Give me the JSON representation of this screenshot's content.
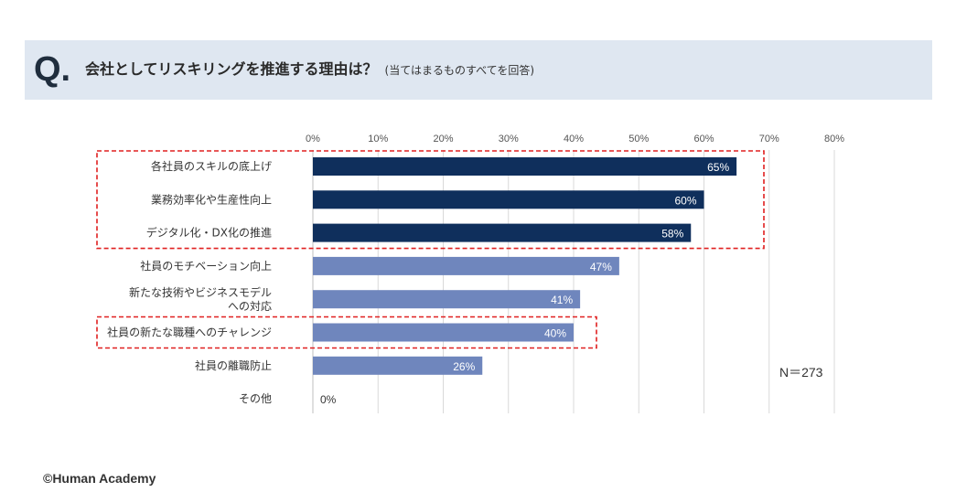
{
  "question": {
    "mark": "Q.",
    "title": "会社としてリスキリングを推進する理由は？",
    "note": "(当てはまるものすべてを回答)"
  },
  "sample_size": "N＝273",
  "copyright": "©Human Academy",
  "colors": {
    "banner_bg": "#dfe7f1",
    "bar_dark": "#0f2f5c",
    "bar_light": "#6f86bd",
    "highlight_border": "#e02020",
    "grid": "#d9d9d9"
  },
  "chart_data": {
    "type": "bar",
    "orientation": "horizontal",
    "categories": [
      "各社員のスキルの底上げ",
      "業務効率化や生産性向上",
      "デジタル化・DX化の推進",
      "社員のモチベーション向上",
      "新たな技術やビジネスモデル\nへの対応",
      "社員の新たな職種へのチャレンジ",
      "社員の離職防止",
      "その他"
    ],
    "values": [
      65,
      60,
      58,
      47,
      41,
      40,
      26,
      0
    ],
    "value_labels": [
      "65%",
      "60%",
      "58%",
      "47%",
      "41%",
      "40%",
      "26%",
      "0%"
    ],
    "bar_color_group": [
      "dark",
      "dark",
      "dark",
      "light",
      "light",
      "light",
      "light",
      "light"
    ],
    "xlim": [
      0,
      80
    ],
    "x_ticks": [
      0,
      10,
      20,
      30,
      40,
      50,
      60,
      70,
      80
    ],
    "x_tick_labels": [
      "0%",
      "10%",
      "20%",
      "30%",
      "40%",
      "50%",
      "60%",
      "70%",
      "80%"
    ],
    "x_axis_position": "top",
    "grid": true,
    "highlight_groups": [
      [
        0,
        1,
        2
      ],
      [
        5
      ]
    ],
    "title": "",
    "xlabel": "",
    "ylabel": ""
  }
}
